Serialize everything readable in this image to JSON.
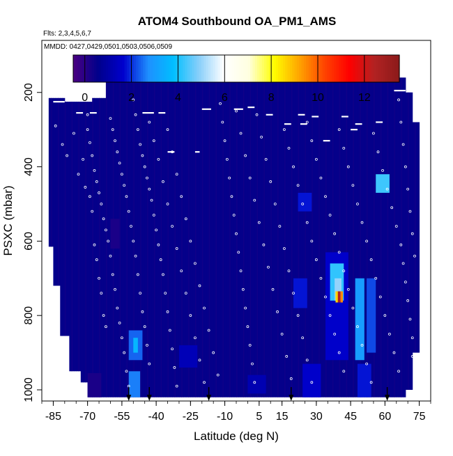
{
  "chart_data": {
    "type": "heatmap",
    "title": "ATOM4 Southbound OA_PM1_AMS",
    "subtitle_flights": "Flts: 2,3,4,5,6,7",
    "subtitle_dates": "MMDD: 0427,0429,0501,0503,0506,0509",
    "xlabel": "Latitude (deg N)",
    "ylabel": "PSXC (mbar)",
    "xlim": [
      -90,
      80
    ],
    "ylim": [
      1030,
      60
    ],
    "y_reversed": true,
    "x_ticks": [
      -85,
      -70,
      -55,
      -40,
      -25,
      -10,
      5,
      15,
      30,
      45,
      60,
      75
    ],
    "x_tick_labels": [
      "-85",
      "-70",
      "-55",
      "-40",
      "-25",
      "-10",
      "5",
      "15",
      "30",
      "45",
      "60",
      "75"
    ],
    "y_ticks": [
      200,
      400,
      600,
      800,
      1000
    ],
    "y_tick_labels": [
      "200",
      "400",
      "600",
      "800",
      "1000"
    ],
    "colorbar": {
      "range": [
        -0.5,
        13.5
      ],
      "ticks": [
        0,
        2,
        4,
        6,
        8,
        10,
        12
      ],
      "tick_labels": [
        "0",
        "2",
        "4",
        "6",
        "8",
        "10",
        "12"
      ],
      "colors": [
        "#4b0082",
        "#00008b",
        "#0000cd",
        "#1e90ff",
        "#00bfff",
        "#87cefa",
        "#ffffff",
        "#ffffe0",
        "#ffff00",
        "#ffa500",
        "#ff4500",
        "#ff0000",
        "#b22222",
        "#8b1a1a"
      ]
    },
    "background_value": 0.5,
    "column_tops": [
      {
        "x": [
          -87,
          -80
        ],
        "p": 215
      },
      {
        "x": [
          -80,
          -68
        ],
        "p": 225
      },
      {
        "x": [
          -68,
          -62
        ],
        "p": 215
      },
      {
        "x": [
          -62,
          69
        ],
        "p": 160
      },
      {
        "x": [
          69,
          72
        ],
        "p": 200
      },
      {
        "x": [
          72,
          75
        ],
        "p": 280
      }
    ],
    "column_bottoms": [
      {
        "x": [
          -87,
          -85
        ],
        "p": 615
      },
      {
        "x": [
          -85,
          -82
        ],
        "p": 720
      },
      {
        "x": [
          -82,
          -78
        ],
        "p": 855
      },
      {
        "x": [
          -78,
          -73
        ],
        "p": 950
      },
      {
        "x": [
          -73,
          -70
        ],
        "p": 980
      },
      {
        "x": [
          -70,
          69
        ],
        "p": 1020
      },
      {
        "x": [
          69,
          72
        ],
        "p": 1000
      },
      {
        "x": [
          72,
          75
        ],
        "p": 900
      }
    ],
    "features": [
      {
        "lat": [
          -70,
          -64
        ],
        "p": [
          955,
          1020
        ],
        "value": 0.2
      },
      {
        "lat": [
          -52,
          -46
        ],
        "p": [
          840,
          920
        ],
        "value": 2.4
      },
      {
        "lat": [
          -52,
          -47
        ],
        "p": [
          950,
          1020
        ],
        "value": 2.6
      },
      {
        "lat": [
          -50,
          -48
        ],
        "p": [
          860,
          900
        ],
        "value": 3.6
      },
      {
        "lat": [
          -60,
          -56
        ],
        "p": [
          540,
          620
        ],
        "value": 0.2
      },
      {
        "lat": [
          34,
          44
        ],
        "p": [
          630,
          920
        ],
        "value": 1.6
      },
      {
        "lat": [
          36,
          42
        ],
        "p": [
          660,
          760
        ],
        "value": 4.2
      },
      {
        "lat": [
          38,
          41
        ],
        "p": [
          700,
          760
        ],
        "value": 5.0
      },
      {
        "lat": [
          39,
          40.6
        ],
        "p": [
          735,
          765
        ],
        "value": 12.5
      },
      {
        "lat": [
          38.4,
          39.4
        ],
        "p": [
          735,
          765
        ],
        "value": 8.6
      },
      {
        "lat": [
          40.6,
          41.6
        ],
        "p": [
          735,
          765
        ],
        "value": 9.5
      },
      {
        "lat": [
          47,
          51
        ],
        "p": [
          700,
          920
        ],
        "value": 3.0
      },
      {
        "lat": [
          52,
          56
        ],
        "p": [
          700,
          900
        ],
        "value": 2.2
      },
      {
        "lat": [
          56,
          62
        ],
        "p": [
          420,
          470
        ],
        "value": 4.3
      },
      {
        "lat": [
          20,
          26
        ],
        "p": [
          700,
          780
        ],
        "value": 1.8
      },
      {
        "lat": [
          22,
          28
        ],
        "p": [
          470,
          520
        ],
        "value": 1.8
      },
      {
        "lat": [
          24,
          32
        ],
        "p": [
          930,
          1020
        ],
        "value": 1.6
      },
      {
        "lat": [
          48,
          54
        ],
        "p": [
          930,
          1020
        ],
        "value": 1.8
      },
      {
        "lat": [
          -30,
          -22
        ],
        "p": [
          880,
          940
        ],
        "value": 1.3
      },
      {
        "lat": [
          0,
          8
        ],
        "p": [
          960,
          1010
        ],
        "value": 1.2
      }
    ],
    "arrow_latitudes": [
      -52,
      -43,
      -17,
      19,
      61
    ],
    "sample_points": [
      [
        -84,
        290
      ],
      [
        -81,
        340
      ],
      [
        -79,
        370
      ],
      [
        -76,
        310
      ],
      [
        -74,
        420
      ],
      [
        -72,
        380
      ],
      [
        -71,
        455
      ],
      [
        -69,
        480
      ],
      [
        -68,
        520
      ],
      [
        -67,
        610
      ],
      [
        -66,
        650
      ],
      [
        -65,
        700
      ],
      [
        -64,
        740
      ],
      [
        -63,
        800
      ],
      [
        -62,
        830
      ],
      [
        -70,
        260
      ],
      [
        -70,
        300
      ],
      [
        -69,
        335
      ],
      [
        -68,
        370
      ],
      [
        -67,
        410
      ],
      [
        -66,
        440
      ],
      [
        -65,
        470
      ],
      [
        -64,
        500
      ],
      [
        -63,
        540
      ],
      [
        -62,
        570
      ],
      [
        -61,
        600
      ],
      [
        -60,
        640
      ],
      [
        -59,
        690
      ],
      [
        -58,
        730
      ],
      [
        -57,
        780
      ],
      [
        -56,
        820
      ],
      [
        -55,
        860
      ],
      [
        -54,
        900
      ],
      [
        -53,
        950
      ],
      [
        -52,
        990
      ],
      [
        -60,
        270
      ],
      [
        -59,
        300
      ],
      [
        -58,
        330
      ],
      [
        -57,
        360
      ],
      [
        -56,
        390
      ],
      [
        -55,
        420
      ],
      [
        -54,
        450
      ],
      [
        -53,
        480
      ],
      [
        -52,
        520
      ],
      [
        -51,
        560
      ],
      [
        -50,
        600
      ],
      [
        -49,
        640
      ],
      [
        -48,
        690
      ],
      [
        -47,
        740
      ],
      [
        -46,
        790
      ],
      [
        -45,
        830
      ],
      [
        -44,
        880
      ],
      [
        -43,
        930
      ],
      [
        -50,
        220
      ],
      [
        -49,
        260
      ],
      [
        -48,
        300
      ],
      [
        -47,
        340
      ],
      [
        -46,
        370
      ],
      [
        -45,
        400
      ],
      [
        -44,
        430
      ],
      [
        -43,
        460
      ],
      [
        -42,
        490
      ],
      [
        -41,
        530
      ],
      [
        -40,
        570
      ],
      [
        -39,
        610
      ],
      [
        -38,
        650
      ],
      [
        -37,
        690
      ],
      [
        -36,
        740
      ],
      [
        -35,
        790
      ],
      [
        -34,
        840
      ],
      [
        -33,
        890
      ],
      [
        -32,
        940
      ],
      [
        -31,
        990
      ],
      [
        -43,
        280
      ],
      [
        -41,
        330
      ],
      [
        -39,
        380
      ],
      [
        -37,
        440
      ],
      [
        -35,
        500
      ],
      [
        -33,
        560
      ],
      [
        -31,
        620
      ],
      [
        -29,
        680
      ],
      [
        -27,
        740
      ],
      [
        -25,
        800
      ],
      [
        -23,
        860
      ],
      [
        -21,
        920
      ],
      [
        -19,
        980
      ],
      [
        -35,
        300
      ],
      [
        -33,
        360
      ],
      [
        -31,
        420
      ],
      [
        -29,
        480
      ],
      [
        -27,
        540
      ],
      [
        -25,
        600
      ],
      [
        -23,
        660
      ],
      [
        -21,
        720
      ],
      [
        -19,
        780
      ],
      [
        -17,
        840
      ],
      [
        -15,
        900
      ],
      [
        -13,
        960
      ],
      [
        -12,
        230
      ],
      [
        -11,
        280
      ],
      [
        -10,
        330
      ],
      [
        -9,
        380
      ],
      [
        -8,
        430
      ],
      [
        -7,
        480
      ],
      [
        -6,
        530
      ],
      [
        -5,
        580
      ],
      [
        -4,
        630
      ],
      [
        -3,
        680
      ],
      [
        -2,
        730
      ],
      [
        -1,
        780
      ],
      [
        0,
        830
      ],
      [
        1,
        880
      ],
      [
        2,
        930
      ],
      [
        3,
        980
      ],
      [
        -5,
        250
      ],
      [
        -3,
        310
      ],
      [
        -1,
        370
      ],
      [
        1,
        430
      ],
      [
        3,
        490
      ],
      [
        5,
        550
      ],
      [
        7,
        610
      ],
      [
        9,
        670
      ],
      [
        11,
        730
      ],
      [
        13,
        790
      ],
      [
        15,
        850
      ],
      [
        17,
        910
      ],
      [
        19,
        970
      ],
      [
        4,
        260
      ],
      [
        6,
        320
      ],
      [
        8,
        380
      ],
      [
        10,
        440
      ],
      [
        12,
        500
      ],
      [
        14,
        560
      ],
      [
        16,
        620
      ],
      [
        18,
        680
      ],
      [
        20,
        740
      ],
      [
        22,
        800
      ],
      [
        24,
        860
      ],
      [
        26,
        920
      ],
      [
        28,
        980
      ],
      [
        16,
        300
      ],
      [
        18,
        350
      ],
      [
        20,
        400
      ],
      [
        22,
        450
      ],
      [
        24,
        500
      ],
      [
        26,
        550
      ],
      [
        28,
        600
      ],
      [
        30,
        650
      ],
      [
        32,
        700
      ],
      [
        34,
        750
      ],
      [
        36,
        800
      ],
      [
        38,
        850
      ],
      [
        40,
        900
      ],
      [
        42,
        950
      ],
      [
        26,
        280
      ],
      [
        28,
        330
      ],
      [
        30,
        380
      ],
      [
        32,
        430
      ],
      [
        34,
        480
      ],
      [
        36,
        530
      ],
      [
        38,
        580
      ],
      [
        40,
        630
      ],
      [
        42,
        680
      ],
      [
        44,
        730
      ],
      [
        46,
        780
      ],
      [
        48,
        830
      ],
      [
        50,
        880
      ],
      [
        52,
        930
      ],
      [
        54,
        980
      ],
      [
        40,
        300
      ],
      [
        42,
        350
      ],
      [
        44,
        400
      ],
      [
        46,
        450
      ],
      [
        48,
        500
      ],
      [
        50,
        550
      ],
      [
        52,
        600
      ],
      [
        54,
        650
      ],
      [
        56,
        700
      ],
      [
        58,
        750
      ],
      [
        60,
        800
      ],
      [
        62,
        850
      ],
      [
        64,
        900
      ],
      [
        66,
        950
      ],
      [
        55,
        310
      ],
      [
        57,
        360
      ],
      [
        59,
        410
      ],
      [
        61,
        460
      ],
      [
        63,
        510
      ],
      [
        65,
        560
      ],
      [
        67,
        610
      ],
      [
        68,
        660
      ],
      [
        69,
        710
      ],
      [
        70,
        760
      ],
      [
        71,
        810
      ],
      [
        72,
        860
      ],
      [
        72,
        910
      ],
      [
        66,
        220
      ],
      [
        67,
        280
      ],
      [
        68,
        340
      ],
      [
        69,
        400
      ],
      [
        70,
        460
      ],
      [
        71,
        520
      ],
      [
        72,
        580
      ],
      [
        73,
        640
      ]
    ],
    "flight_top_segments": [
      [
        -85,
        -80,
        225
      ],
      [
        -75,
        -72,
        255
      ],
      [
        -69,
        -66,
        255
      ],
      [
        -46,
        -41,
        255
      ],
      [
        -39,
        -36,
        255
      ],
      [
        -20,
        -16,
        245
      ],
      [
        -6,
        -2,
        245
      ],
      [
        0,
        3,
        240
      ],
      [
        8,
        11,
        260
      ],
      [
        16,
        19,
        285
      ],
      [
        23,
        26,
        285
      ],
      [
        28,
        31,
        265
      ],
      [
        41,
        44,
        265
      ],
      [
        47,
        50,
        285
      ],
      [
        56,
        59,
        280
      ],
      [
        64,
        69,
        195
      ],
      [
        -35,
        -32,
        360
      ],
      [
        -23,
        -21,
        360
      ],
      [
        22,
        25,
        260
      ],
      [
        33,
        36,
        330
      ],
      [
        45,
        48,
        300
      ]
    ]
  }
}
